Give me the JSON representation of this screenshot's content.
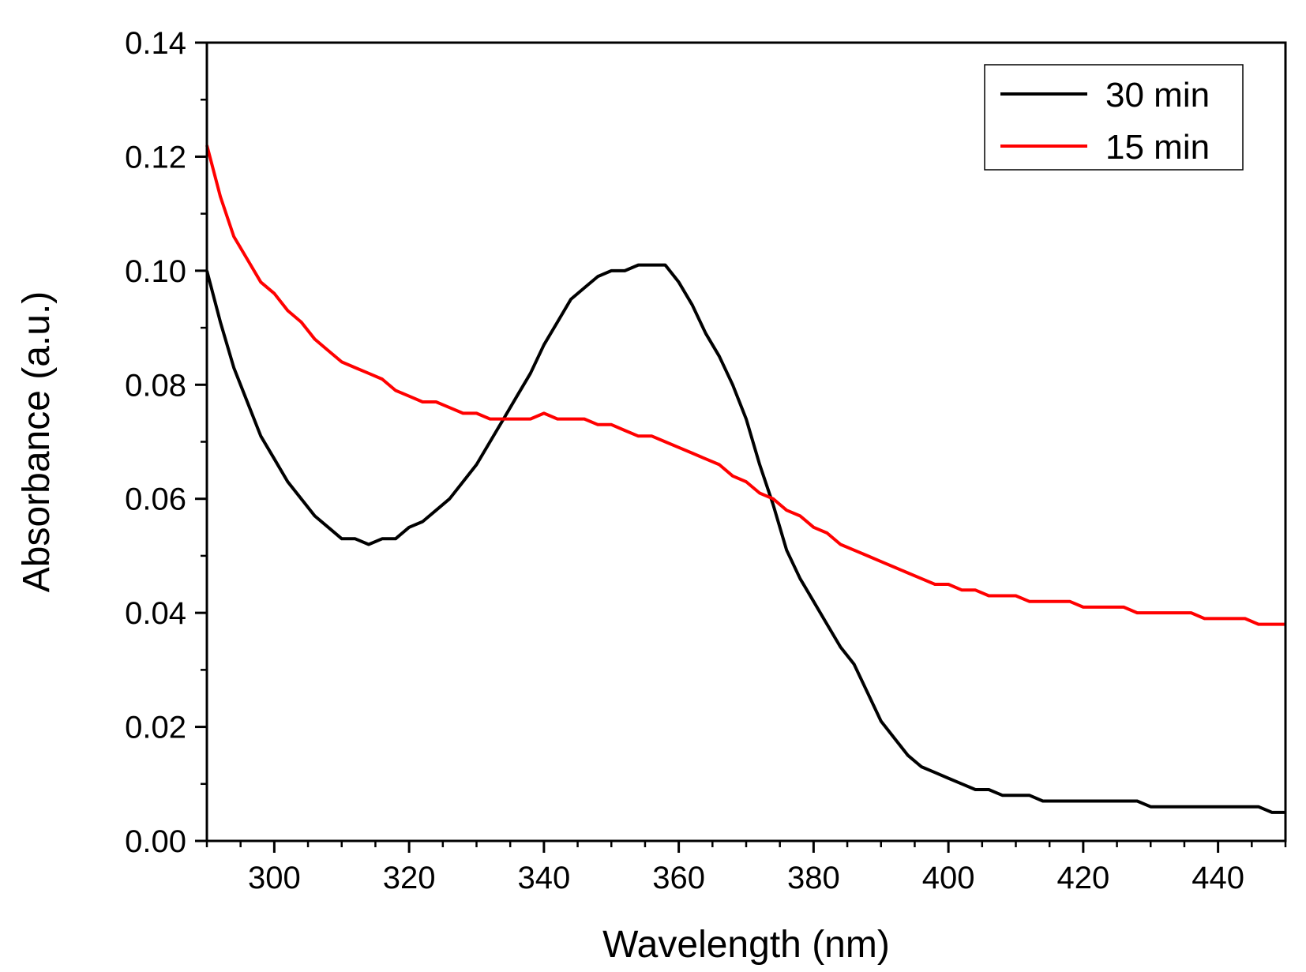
{
  "chart_data": {
    "type": "line",
    "title": "",
    "xlabel": "Wavelength (nm)",
    "ylabel": "Absorbance (a.u.)",
    "xlim": [
      290,
      450
    ],
    "ylim": [
      0.0,
      0.14
    ],
    "x_ticks": [
      300,
      320,
      340,
      360,
      380,
      400,
      420,
      440
    ],
    "x_tick_labels": [
      "300",
      "320",
      "340",
      "360",
      "380",
      "400",
      "420",
      "440"
    ],
    "y_ticks": [
      0.0,
      0.02,
      0.04,
      0.06,
      0.08,
      0.1,
      0.12,
      0.14
    ],
    "y_tick_labels": [
      "0.00",
      "0.02",
      "0.04",
      "0.06",
      "0.08",
      "0.10",
      "0.12",
      "0.14"
    ],
    "x_minor_step": 5,
    "y_minor_step": 0.01,
    "grid": false,
    "legend_position": "top-right",
    "series": [
      {
        "name": "30 min",
        "color": "#000000",
        "x": [
          290,
          292,
          294,
          296,
          298,
          300,
          302,
          304,
          306,
          308,
          310,
          312,
          314,
          316,
          318,
          320,
          322,
          324,
          326,
          328,
          330,
          332,
          334,
          336,
          338,
          340,
          342,
          344,
          346,
          348,
          350,
          352,
          354,
          356,
          358,
          360,
          362,
          364,
          366,
          368,
          370,
          372,
          374,
          376,
          378,
          380,
          382,
          384,
          386,
          388,
          390,
          392,
          394,
          396,
          398,
          400,
          402,
          404,
          406,
          408,
          410,
          412,
          414,
          416,
          418,
          420,
          422,
          424,
          426,
          428,
          430,
          432,
          434,
          436,
          438,
          440,
          442,
          444,
          446,
          448,
          450
        ],
        "y": [
          0.1,
          0.091,
          0.083,
          0.077,
          0.071,
          0.067,
          0.063,
          0.06,
          0.057,
          0.055,
          0.053,
          0.053,
          0.052,
          0.053,
          0.053,
          0.055,
          0.056,
          0.058,
          0.06,
          0.063,
          0.066,
          0.07,
          0.074,
          0.078,
          0.082,
          0.087,
          0.091,
          0.095,
          0.097,
          0.099,
          0.1,
          0.1,
          0.101,
          0.101,
          0.101,
          0.098,
          0.094,
          0.089,
          0.085,
          0.08,
          0.074,
          0.066,
          0.059,
          0.051,
          0.046,
          0.042,
          0.038,
          0.034,
          0.031,
          0.026,
          0.021,
          0.018,
          0.015,
          0.013,
          0.012,
          0.011,
          0.01,
          0.009,
          0.009,
          0.008,
          0.008,
          0.008,
          0.007,
          0.007,
          0.007,
          0.007,
          0.007,
          0.007,
          0.007,
          0.007,
          0.006,
          0.006,
          0.006,
          0.006,
          0.006,
          0.006,
          0.006,
          0.006,
          0.006,
          0.005,
          0.005
        ]
      },
      {
        "name": "15 min",
        "color": "#ff0000",
        "x": [
          290,
          292,
          294,
          296,
          298,
          300,
          302,
          304,
          306,
          308,
          310,
          312,
          314,
          316,
          318,
          320,
          322,
          324,
          326,
          328,
          330,
          332,
          334,
          336,
          338,
          340,
          342,
          344,
          346,
          348,
          350,
          352,
          354,
          356,
          358,
          360,
          362,
          364,
          366,
          368,
          370,
          372,
          374,
          376,
          378,
          380,
          382,
          384,
          386,
          388,
          390,
          392,
          394,
          396,
          398,
          400,
          402,
          404,
          406,
          408,
          410,
          412,
          414,
          416,
          418,
          420,
          422,
          424,
          426,
          428,
          430,
          432,
          434,
          436,
          438,
          440,
          442,
          444,
          446,
          448,
          450
        ],
        "y": [
          0.122,
          0.113,
          0.106,
          0.102,
          0.098,
          0.096,
          0.093,
          0.091,
          0.088,
          0.086,
          0.084,
          0.083,
          0.082,
          0.081,
          0.079,
          0.078,
          0.077,
          0.077,
          0.076,
          0.075,
          0.075,
          0.074,
          0.074,
          0.074,
          0.074,
          0.075,
          0.074,
          0.074,
          0.074,
          0.073,
          0.073,
          0.072,
          0.071,
          0.071,
          0.07,
          0.069,
          0.068,
          0.067,
          0.066,
          0.064,
          0.063,
          0.061,
          0.06,
          0.058,
          0.057,
          0.055,
          0.054,
          0.052,
          0.051,
          0.05,
          0.049,
          0.048,
          0.047,
          0.046,
          0.045,
          0.045,
          0.044,
          0.044,
          0.043,
          0.043,
          0.043,
          0.042,
          0.042,
          0.042,
          0.042,
          0.041,
          0.041,
          0.041,
          0.041,
          0.04,
          0.04,
          0.04,
          0.04,
          0.04,
          0.039,
          0.039,
          0.039,
          0.039,
          0.038,
          0.038,
          0.038
        ]
      }
    ]
  }
}
